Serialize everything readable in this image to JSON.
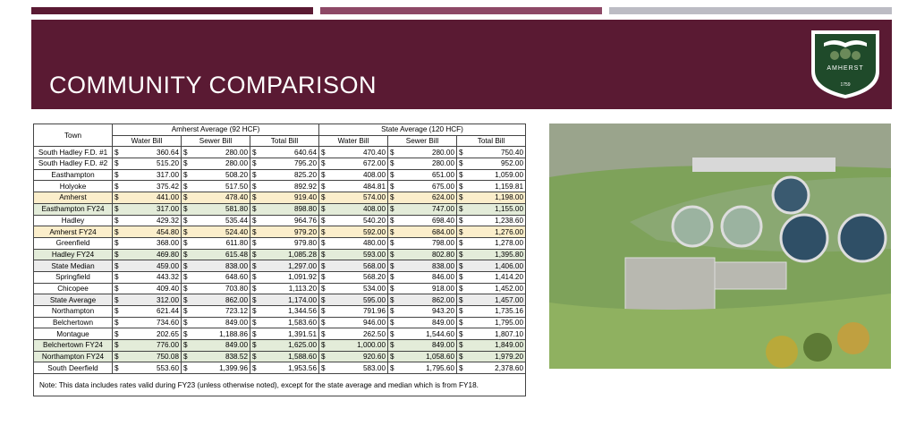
{
  "header": {
    "title": "COMMUNITY COMPARISON",
    "logo": {
      "name": "AMHERST",
      "year": "1759"
    }
  },
  "table": {
    "town_header": "Town",
    "groups": [
      "Amherst Average (92 HCF)",
      "State Average (120 HCF)"
    ],
    "columns": [
      "Water Bill",
      "Sewer Bill",
      "Total Bill",
      "Water Bill",
      "Sewer Bill",
      "Total Bill"
    ],
    "currency": "$",
    "rows": [
      {
        "town": "South Hadley F.D. #1",
        "cells": [
          "360.64",
          "280.00",
          "640.64",
          "470.40",
          "280.00",
          "750.40"
        ]
      },
      {
        "town": "South Hadley F.D. #2",
        "cells": [
          "515.20",
          "280.00",
          "795.20",
          "672.00",
          "280.00",
          "952.00"
        ]
      },
      {
        "town": "Easthampton",
        "cells": [
          "317.00",
          "508.20",
          "825.20",
          "408.00",
          "651.00",
          "1,059.00"
        ]
      },
      {
        "town": "Holyoke",
        "cells": [
          "375.42",
          "517.50",
          "892.92",
          "484.81",
          "675.00",
          "1,159.81"
        ]
      },
      {
        "town": "Amherst",
        "cells": [
          "441.00",
          "478.40",
          "919.40",
          "574.00",
          "624.00",
          "1,198.00"
        ],
        "color": "#fbeecb"
      },
      {
        "town": "Easthampton FY24",
        "cells": [
          "317.00",
          "581.80",
          "898.80",
          "408.00",
          "747.00",
          "1,155.00"
        ],
        "color": "#e3ecd9"
      },
      {
        "town": "Hadley",
        "cells": [
          "429.32",
          "535.44",
          "964.76",
          "540.20",
          "698.40",
          "1,238.60"
        ]
      },
      {
        "town": "Amherst FY24",
        "cells": [
          "454.80",
          "524.40",
          "979.20",
          "592.00",
          "684.00",
          "1,276.00"
        ],
        "color": "#fbeecb"
      },
      {
        "town": "Greenfield",
        "cells": [
          "368.00",
          "611.80",
          "979.80",
          "480.00",
          "798.00",
          "1,278.00"
        ]
      },
      {
        "town": "Hadley FY24",
        "cells": [
          "469.80",
          "615.48",
          "1,085.28",
          "593.00",
          "802.80",
          "1,395.80"
        ],
        "color": "#e3ecd9"
      },
      {
        "town": "State Median",
        "cells": [
          "459.00",
          "838.00",
          "1,297.00",
          "568.00",
          "838.00",
          "1,406.00"
        ],
        "color": "#ececec"
      },
      {
        "town": "Springfield",
        "cells": [
          "443.32",
          "648.60",
          "1,091.92",
          "568.20",
          "846.00",
          "1,414.20"
        ]
      },
      {
        "town": "Chicopee",
        "cells": [
          "409.40",
          "703.80",
          "1,113.20",
          "534.00",
          "918.00",
          "1,452.00"
        ]
      },
      {
        "town": "State Average",
        "cells": [
          "312.00",
          "862.00",
          "1,174.00",
          "595.00",
          "862.00",
          "1,457.00"
        ],
        "color": "#ececec"
      },
      {
        "town": "Northampton",
        "cells": [
          "621.44",
          "723.12",
          "1,344.56",
          "791.96",
          "943.20",
          "1,735.16"
        ]
      },
      {
        "town": "Belchertown",
        "cells": [
          "734.60",
          "849.00",
          "1,583.60",
          "946.00",
          "849.00",
          "1,795.00"
        ]
      },
      {
        "town": "Montague",
        "cells": [
          "202.65",
          "1,188.86",
          "1,391.51",
          "262.50",
          "1,544.60",
          "1,807.10"
        ]
      },
      {
        "town": "Belchertown FY24",
        "cells": [
          "776.00",
          "849.00",
          "1,625.00",
          "1,000.00",
          "849.00",
          "1,849.00"
        ],
        "color": "#e3ecd9"
      },
      {
        "town": "Northampton FY24",
        "cells": [
          "750.08",
          "838.52",
          "1,588.60",
          "920.60",
          "1,058.60",
          "1,979.20"
        ],
        "color": "#e3ecd9"
      },
      {
        "town": "South Deerfield",
        "cells": [
          "553.60",
          "1,399.96",
          "1,953.56",
          "583.00",
          "1,795.60",
          "2,378.60"
        ]
      }
    ],
    "note": "Note: This data includes rates valid during FY23 (unless otherwise noted), except for the state average and median which is from FY18."
  }
}
